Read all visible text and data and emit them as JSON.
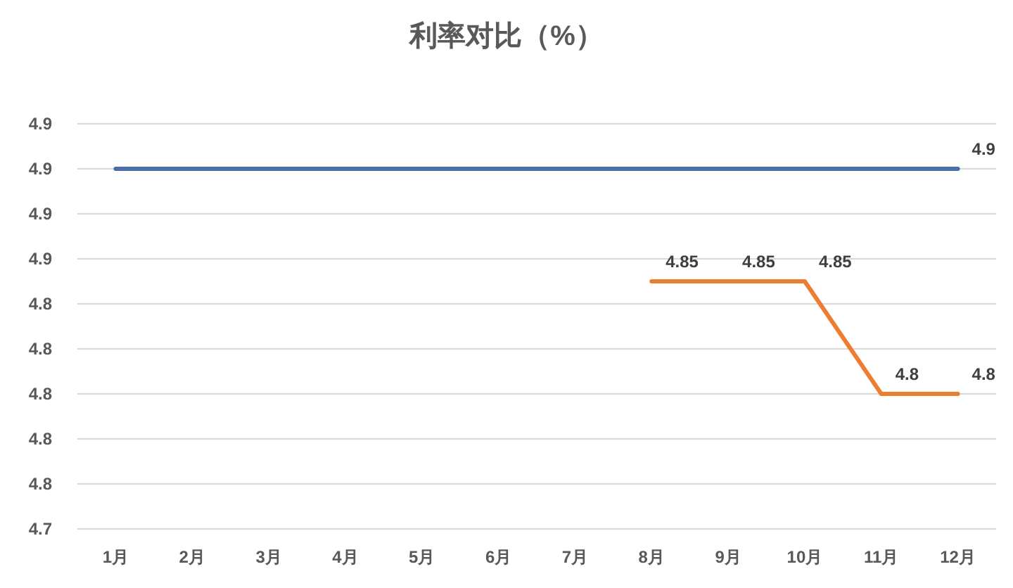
{
  "chart_data": {
    "type": "line",
    "title": "利率对比（%）",
    "categories": [
      "1月",
      "2月",
      "3月",
      "4月",
      "5月",
      "6月",
      "7月",
      "8月",
      "9月",
      "10月",
      "11月",
      "12月"
    ],
    "series": [
      {
        "color": "#4a6ea9",
        "values": [
          4.9,
          4.9,
          4.9,
          4.9,
          4.9,
          4.9,
          4.9,
          4.9,
          4.9,
          4.9,
          4.9,
          4.9
        ],
        "value_labels": [
          null,
          null,
          null,
          null,
          null,
          null,
          null,
          null,
          null,
          null,
          null,
          "4.9"
        ]
      },
      {
        "color": "#ed7d31",
        "values": [
          null,
          null,
          null,
          null,
          null,
          null,
          null,
          4.85,
          4.85,
          4.85,
          4.8,
          4.8
        ],
        "value_labels": [
          null,
          null,
          null,
          null,
          null,
          null,
          null,
          "4.85",
          "4.85",
          "4.85",
          "4.8",
          "4.8"
        ]
      }
    ],
    "ylim": [
      4.74,
      4.92
    ],
    "yticks": [
      {
        "value": 4.74,
        "label": "4.7"
      },
      {
        "value": 4.76,
        "label": "4.8"
      },
      {
        "value": 4.78,
        "label": "4.8"
      },
      {
        "value": 4.8,
        "label": "4.8"
      },
      {
        "value": 4.82,
        "label": "4.8"
      },
      {
        "value": 4.84,
        "label": "4.8"
      },
      {
        "value": 4.86,
        "label": "4.9"
      },
      {
        "value": 4.88,
        "label": "4.9"
      },
      {
        "value": 4.9,
        "label": "4.9"
      },
      {
        "value": 4.92,
        "label": "4.9"
      }
    ],
    "grid": "y"
  }
}
